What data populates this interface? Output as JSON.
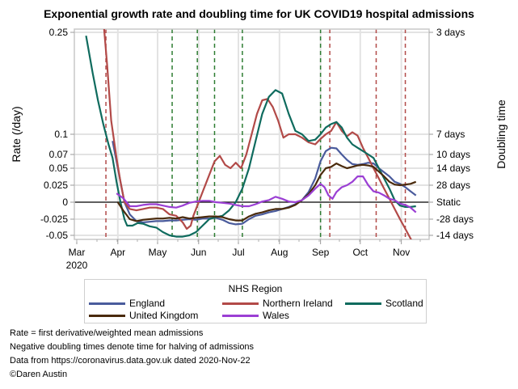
{
  "chart_data": {
    "type": "line",
    "title": "Exponential growth rate and doubling time for UK COVID19 hospital admissions",
    "xlabel": "",
    "ylabel": "Rate (/day)",
    "y2label": "Doubling time",
    "x_start": "2020-03-01",
    "x_ticks": [
      "Mar",
      "Apr",
      "May",
      "Jun",
      "Jul",
      "Aug",
      "Sep",
      "Oct",
      "Nov"
    ],
    "x_tick_days": [
      0,
      31,
      61,
      92,
      122,
      153,
      184,
      214,
      245
    ],
    "x_year_label": "2020",
    "y_ticks": [
      0.25,
      0.1,
      0.07,
      0.05,
      0.025,
      0,
      -0.025,
      -0.05
    ],
    "y_tick_labels": [
      "0.25",
      "0.1",
      "0.07",
      "0.05",
      "0.025",
      "0",
      "-0.025",
      "-0.05"
    ],
    "y2_tick_labels": [
      "3 days",
      "7 days",
      "10 days",
      "14 days",
      "28 days",
      "Static",
      "-28 days",
      "-14 days"
    ],
    "ylim": [
      -0.055,
      0.255
    ],
    "grid": true,
    "reference_line": {
      "value": 0,
      "label": "Static"
    },
    "vlines": [
      {
        "day": 22,
        "color": "#b24a48"
      },
      {
        "day": 72,
        "color": "#2e7d32"
      },
      {
        "day": 91,
        "color": "#2e7d32"
      },
      {
        "day": 104,
        "color": "#2e7d32"
      },
      {
        "day": 125,
        "color": "#2e7d32"
      },
      {
        "day": 184,
        "color": "#2e7d32"
      },
      {
        "day": 191,
        "color": "#b24a48"
      },
      {
        "day": 226,
        "color": "#b24a48"
      },
      {
        "day": 248,
        "color": "#b24a48"
      }
    ],
    "legend_title": "NHS Region",
    "legend_position": "bottom",
    "series": [
      {
        "name": "England",
        "color": "#4a5b9c",
        "x": [
          27,
          30,
          33,
          36,
          40,
          45,
          50,
          55,
          60,
          65,
          70,
          75,
          80,
          85,
          90,
          95,
          100,
          105,
          110,
          115,
          120,
          125,
          130,
          135,
          140,
          145,
          150,
          155,
          160,
          165,
          170,
          175,
          180,
          184,
          188,
          192,
          196,
          200,
          204,
          208,
          212,
          216,
          220,
          224,
          228,
          232,
          236,
          240,
          244,
          248,
          252,
          256
        ],
        "y": [
          0.09,
          0.06,
          0.03,
          0.0,
          -0.018,
          -0.028,
          -0.03,
          -0.029,
          -0.028,
          -0.028,
          -0.027,
          -0.027,
          -0.026,
          -0.025,
          -0.026,
          -0.024,
          -0.024,
          -0.023,
          -0.026,
          -0.031,
          -0.033,
          -0.032,
          -0.025,
          -0.02,
          -0.018,
          -0.015,
          -0.013,
          -0.01,
          -0.007,
          -0.003,
          0.003,
          0.015,
          0.035,
          0.06,
          0.075,
          0.08,
          0.079,
          0.07,
          0.062,
          0.056,
          0.055,
          0.056,
          0.058,
          0.057,
          0.05,
          0.044,
          0.038,
          0.03,
          0.027,
          0.022,
          0.016,
          0.01
        ]
      },
      {
        "name": "Northern Ireland",
        "color": "#b24a48",
        "x": [
          20,
          23,
          26,
          30,
          33,
          36,
          40,
          45,
          50,
          55,
          60,
          65,
          70,
          75,
          80,
          83,
          86,
          88,
          91,
          95,
          100,
          104,
          108,
          112,
          116,
          120,
          124,
          128,
          132,
          136,
          140,
          144,
          148,
          152,
          156,
          160,
          165,
          170,
          175,
          180,
          184,
          188,
          192,
          196,
          200,
          204,
          208,
          212,
          216,
          220,
          224,
          228,
          232,
          236,
          240,
          244,
          248,
          252,
          256
        ],
        "y": [
          0.27,
          0.2,
          0.12,
          0.065,
          0.03,
          0.0,
          -0.01,
          -0.012,
          -0.01,
          -0.008,
          -0.008,
          -0.01,
          -0.018,
          -0.02,
          -0.03,
          -0.04,
          -0.035,
          -0.02,
          -0.005,
          0.015,
          0.04,
          0.06,
          0.068,
          0.055,
          0.05,
          0.058,
          0.05,
          0.07,
          0.1,
          0.13,
          0.15,
          0.152,
          0.14,
          0.12,
          0.095,
          0.1,
          0.1,
          0.095,
          0.088,
          0.085,
          0.093,
          0.1,
          0.105,
          0.118,
          0.105,
          0.097,
          0.103,
          0.098,
          0.08,
          0.065,
          0.05,
          0.035,
          0.02,
          0.005,
          -0.01,
          -0.025,
          -0.04,
          -0.055,
          -0.07
        ]
      },
      {
        "name": "Scotland",
        "color": "#0f6b5e",
        "x": [
          7,
          12,
          16,
          20,
          24,
          27,
          30,
          33,
          36,
          38,
          42,
          46,
          50,
          55,
          60,
          65,
          70,
          75,
          80,
          85,
          90,
          95,
          100,
          105,
          110,
          115,
          120,
          125,
          130,
          135,
          140,
          145,
          150,
          155,
          160,
          165,
          170,
          175,
          180,
          184,
          188,
          192,
          196,
          200,
          204,
          208,
          212,
          216,
          220,
          224,
          228,
          232,
          236,
          240,
          244,
          248,
          252,
          256
        ],
        "y": [
          0.245,
          0.19,
          0.15,
          0.115,
          0.085,
          0.065,
          0.03,
          0.0,
          -0.025,
          -0.035,
          -0.035,
          -0.031,
          -0.032,
          -0.036,
          -0.038,
          -0.045,
          -0.05,
          -0.052,
          -0.052,
          -0.05,
          -0.045,
          -0.035,
          -0.025,
          -0.022,
          -0.02,
          -0.012,
          0.0,
          0.02,
          0.05,
          0.09,
          0.13,
          0.155,
          0.165,
          0.16,
          0.13,
          0.105,
          0.1,
          0.09,
          0.092,
          0.1,
          0.11,
          0.115,
          0.118,
          0.11,
          0.095,
          0.085,
          0.08,
          0.075,
          0.07,
          0.065,
          0.05,
          0.035,
          0.02,
          0.003,
          -0.005,
          -0.007,
          -0.007,
          -0.006
        ]
      },
      {
        "name": "United Kingdom",
        "color": "#4a2a0c",
        "x": [
          31,
          35,
          40,
          45,
          50,
          55,
          60,
          65,
          70,
          75,
          80,
          85,
          90,
          95,
          100,
          105,
          110,
          115,
          120,
          125,
          130,
          135,
          140,
          145,
          150,
          155,
          160,
          165,
          170,
          175,
          180,
          184,
          188,
          192,
          196,
          200,
          204,
          208,
          212,
          216,
          220,
          224,
          228,
          232,
          236,
          240,
          244,
          248,
          252,
          256
        ],
        "y": [
          0.0,
          -0.012,
          -0.025,
          -0.028,
          -0.026,
          -0.025,
          -0.024,
          -0.024,
          -0.023,
          -0.024,
          -0.022,
          -0.024,
          -0.023,
          -0.022,
          -0.021,
          -0.021,
          -0.022,
          -0.025,
          -0.027,
          -0.027,
          -0.021,
          -0.017,
          -0.015,
          -0.012,
          -0.01,
          -0.01,
          -0.008,
          -0.004,
          0.003,
          0.012,
          0.025,
          0.04,
          0.05,
          0.052,
          0.057,
          0.053,
          0.05,
          0.052,
          0.054,
          0.055,
          0.054,
          0.052,
          0.045,
          0.038,
          0.03,
          0.026,
          0.025,
          0.026,
          0.027,
          0.03
        ]
      },
      {
        "name": "Wales",
        "color": "#9b3fd4",
        "x": [
          30,
          35,
          40,
          45,
          50,
          55,
          60,
          65,
          70,
          75,
          80,
          85,
          90,
          95,
          100,
          105,
          110,
          115,
          120,
          125,
          130,
          135,
          140,
          145,
          150,
          155,
          160,
          165,
          170,
          175,
          180,
          184,
          187,
          190,
          193,
          196,
          200,
          204,
          208,
          212,
          216,
          220,
          224,
          228,
          232,
          236,
          240,
          244,
          248,
          252,
          256
        ],
        "y": [
          0.013,
          0.006,
          -0.006,
          -0.006,
          -0.004,
          -0.003,
          -0.003,
          -0.005,
          -0.007,
          -0.008,
          -0.005,
          -0.001,
          0.001,
          0.002,
          0.002,
          0.0,
          -0.001,
          -0.002,
          -0.004,
          -0.006,
          -0.006,
          -0.003,
          0.001,
          0.003,
          0.008,
          0.005,
          0.001,
          0.0,
          0.003,
          0.01,
          0.02,
          0.027,
          0.022,
          0.01,
          0.005,
          0.015,
          0.022,
          0.025,
          0.03,
          0.038,
          0.038,
          0.025,
          0.016,
          0.014,
          0.01,
          0.005,
          0.003,
          -0.002,
          -0.004,
          -0.008,
          -0.015
        ]
      }
    ]
  },
  "notes": [
    "Rate = first derivative/weighted mean admissions",
    "Negative doubling times denote time for halving of admissions",
    "Data from https://coronavirus.data.gov.uk dated 2020-Nov-22",
    "©Daren Austin"
  ]
}
